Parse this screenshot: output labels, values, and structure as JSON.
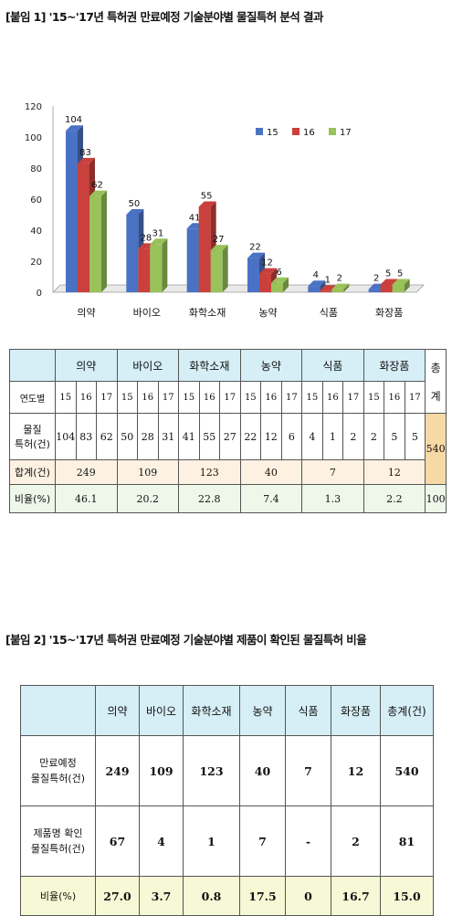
{
  "figure1": {
    "title": "[붙임 1] '15~'17년 특허권 만료예정 기술분야별 물질특허 분석 결과",
    "table": {
      "row_labels": {
        "years": "연도별",
        "patents_line1": "물질",
        "patents_line2": "특허(건)",
        "sum": "합계(건)",
        "rate": "비율(%)"
      },
      "total_header_line1": "총",
      "total_header_line2": "계",
      "year_labels": [
        "15",
        "16",
        "17"
      ],
      "categories": [
        {
          "name": "의약",
          "values": [
            "104",
            "83",
            "62"
          ],
          "sum": "249",
          "rate": "46.1"
        },
        {
          "name": "바이오",
          "values": [
            "50",
            "28",
            "31"
          ],
          "sum": "109",
          "rate": "20.2"
        },
        {
          "name": "화학소재",
          "values": [
            "41",
            "55",
            "27"
          ],
          "sum": "123",
          "rate": "22.8"
        },
        {
          "name": "농약",
          "values": [
            "22",
            "12",
            "6"
          ],
          "sum": "40",
          "rate": "7.4"
        },
        {
          "name": "식품",
          "values": [
            "4",
            "1",
            "2"
          ],
          "sum": "7",
          "rate": "1.3"
        },
        {
          "name": "화장품",
          "values": [
            "2",
            "5",
            "5"
          ],
          "sum": "12",
          "rate": "2.2"
        }
      ],
      "total": "540",
      "total_rate": "100"
    }
  },
  "chart_data": {
    "type": "bar",
    "categories": [
      "의약",
      "바이오",
      "화학소재",
      "농약",
      "식품",
      "화장품"
    ],
    "series": [
      {
        "name": "15",
        "values": [
          104,
          50,
          41,
          22,
          4,
          2
        ],
        "color": "#4a72c4"
      },
      {
        "name": "16",
        "values": [
          83,
          28,
          55,
          12,
          1,
          5
        ],
        "color": "#c9403c"
      },
      {
        "name": "17",
        "values": [
          62,
          31,
          27,
          6,
          2,
          5
        ],
        "color": "#99c25a"
      }
    ],
    "yticks": [
      0,
      20,
      40,
      60,
      80,
      100,
      120
    ],
    "ylim": [
      0,
      120
    ],
    "legend_position": "top-right",
    "data_labels": true,
    "grid": false,
    "title": "",
    "xlabel": "",
    "ylabel": ""
  },
  "figure2": {
    "title": "[붙임 2] '15~'17년 특허권 만료예정 기술분야별 제품이 확인된 물질특허 비율",
    "headers": [
      "",
      "의약",
      "바이오",
      "화학소재",
      "농약",
      "식품",
      "화장품",
      "총계(건)"
    ],
    "rows": [
      {
        "label_line1": "만료예정",
        "label_line2": "물질특허(건)",
        "values": [
          "249",
          "109",
          "123",
          "40",
          "7",
          "12",
          "540"
        ]
      },
      {
        "label_line1": "제품명 확인",
        "label_line2": "물질특허(건)",
        "values": [
          "67",
          "4",
          "1",
          "7",
          "-",
          "2",
          "81"
        ]
      },
      {
        "label_line1": "비율(%)",
        "label_line2": "",
        "values": [
          "27.0",
          "3.7",
          "0.8",
          "17.5",
          "0",
          "16.7",
          "15.0"
        ]
      }
    ]
  }
}
